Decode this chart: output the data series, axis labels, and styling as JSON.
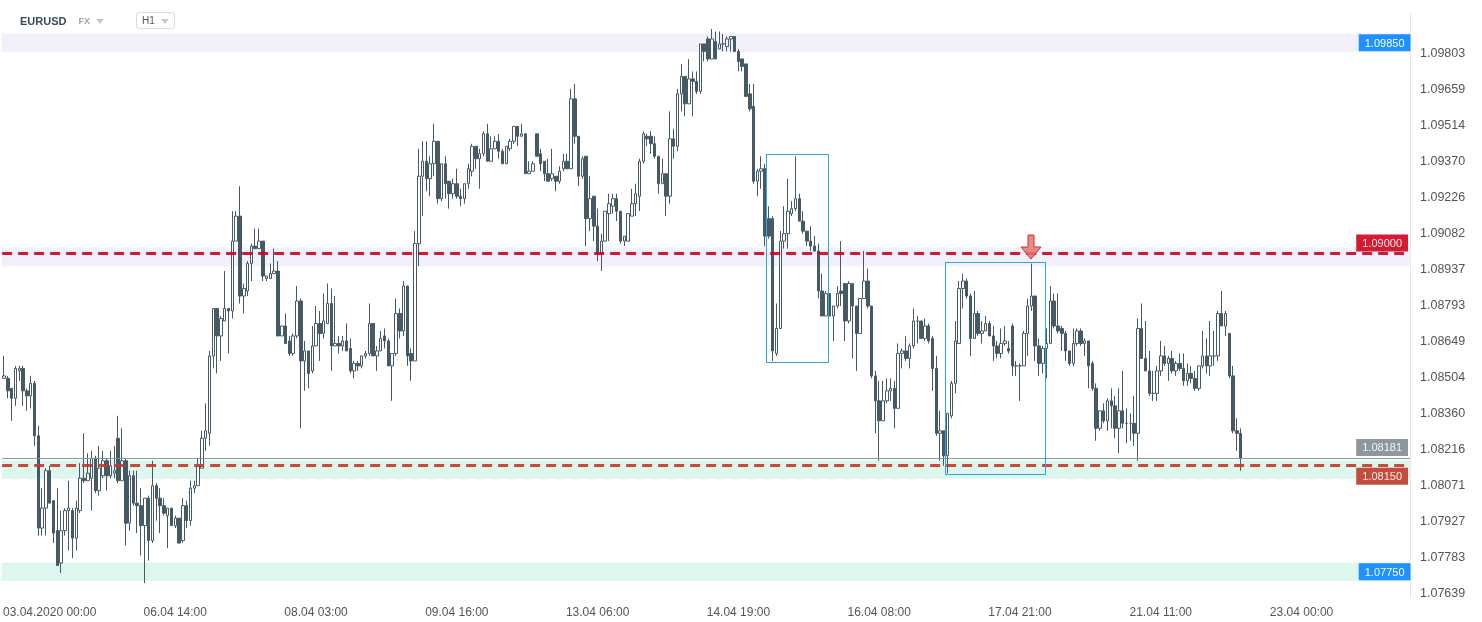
{
  "chart_data": {
    "type": "candlestick",
    "title": "EURUSD",
    "annotations": [
      "FX",
      "H1"
    ],
    "color": "#455a64",
    "categories": [
      null,
      null,
      null,
      null,
      null,
      null,
      null,
      null,
      null,
      null,
      null,
      null,
      "03.04.2020 00:00",
      null,
      null,
      null,
      null,
      null,
      null,
      null,
      null,
      null,
      null,
      null,
      null,
      null,
      null,
      null,
      null,
      null,
      null,
      null,
      null,
      null,
      null,
      null,
      null,
      null,
      null,
      null,
      null,
      null,
      null,
      null,
      null,
      "06.04 14:00",
      null,
      null,
      null,
      null,
      null,
      null,
      null,
      null,
      null,
      null,
      null,
      null,
      null,
      null,
      null,
      null,
      null,
      null,
      null,
      null,
      null,
      null,
      null,
      null,
      null,
      null,
      null,
      null,
      null,
      null,
      null,
      null,
      null,
      null,
      null,
      null,
      "08.04 03:00",
      null,
      null,
      null,
      null,
      null,
      null,
      null,
      null,
      null,
      null,
      null,
      null,
      null,
      null,
      null,
      null,
      null,
      null,
      null,
      null,
      null,
      null,
      null,
      null,
      null,
      null,
      null,
      null,
      null,
      null,
      null,
      null,
      null,
      null,
      null,
      null,
      "09.04 16:00",
      null,
      null,
      null,
      null,
      null,
      null,
      null,
      null,
      null,
      null,
      null,
      null,
      null,
      null,
      null,
      null,
      null,
      null,
      null,
      null,
      null,
      null,
      null,
      null,
      null,
      null,
      null,
      null,
      null,
      null,
      null,
      null,
      null,
      null,
      null,
      null,
      "13.04 06:00",
      null,
      null,
      null,
      null,
      null,
      null,
      null,
      null,
      null,
      null,
      null,
      null,
      null,
      null,
      null,
      null,
      null,
      null,
      null,
      null,
      null,
      null,
      null,
      null,
      null,
      null,
      null,
      null,
      null,
      null,
      null,
      null,
      null,
      null,
      null,
      null,
      "14.04 19:00",
      null,
      null,
      null,
      null,
      null,
      null,
      null,
      null,
      null,
      null,
      null,
      null,
      null,
      null,
      null,
      null,
      null,
      null,
      null,
      null,
      null,
      null,
      null,
      null,
      null,
      null,
      null,
      null,
      null,
      null,
      null,
      null,
      null,
      null,
      null,
      null,
      "16.04 08:00",
      null,
      null,
      null,
      null,
      null,
      null,
      null,
      null,
      null,
      null,
      null,
      null,
      null,
      null,
      null,
      null,
      null,
      null,
      null,
      null,
      null,
      null,
      null,
      null,
      null,
      null,
      null,
      null,
      null,
      null,
      null,
      null,
      null,
      null,
      null,
      null,
      "17.04 21:00",
      null,
      null,
      null,
      null,
      null,
      null,
      null,
      null,
      null,
      null,
      null,
      null,
      null,
      null,
      null,
      null,
      null,
      null,
      null,
      null,
      null,
      null,
      null,
      null,
      null,
      null,
      null,
      null,
      null,
      null,
      null,
      null,
      null,
      null,
      null,
      null,
      "21.04 11:00",
      null,
      null,
      null,
      null,
      null,
      null,
      null,
      null,
      null,
      null,
      null,
      null,
      null,
      null,
      null,
      null,
      null,
      null,
      null,
      null,
      null,
      null,
      null,
      null,
      null,
      null,
      null,
      null,
      null,
      null,
      null,
      null,
      null,
      null,
      null,
      null,
      "23.04 00:00",
      null,
      null,
      null,
      null,
      null,
      null,
      null,
      null,
      null,
      null,
      null,
      null,
      null,
      null,
      null,
      null,
      null,
      null,
      null,
      null,
      null,
      null,
      null,
      null,
      null,
      null,
      null,
      null
    ],
    "ohlc": [
      [
        1.085,
        1.0859,
        1.085,
        1.0851
      ],
      [
        1.085,
        1.0851,
        1.0842,
        1.0845
      ],
      [
        1.0846,
        1.0846,
        1.0833,
        1.0842
      ],
      [
        1.0842,
        1.0855,
        1.0839,
        1.0854
      ],
      [
        1.0853,
        1.0855,
        1.0849,
        1.0854
      ],
      [
        1.0854,
        1.0855,
        1.0839,
        1.0845
      ],
      [
        1.0845,
        1.0846,
        1.0837,
        1.0843
      ],
      [
        1.0843,
        1.0851,
        1.0838,
        1.0848
      ],
      [
        1.0848,
        1.0849,
        1.0823,
        1.0827
      ],
      [
        1.0827,
        1.0831,
        1.0787,
        1.079
      ],
      [
        1.079,
        1.0806,
        1.0787,
        1.0798
      ],
      [
        1.0798,
        1.0814,
        1.0787,
        1.0813
      ],
      [
        1.0813,
        1.0815,
        1.08,
        1.08
      ],
      [
        1.0801,
        1.0801,
        1.0784,
        1.0788
      ],
      [
        1.0789,
        1.0806,
        1.0775,
        1.0775
      ],
      [
        1.0776,
        1.0797,
        1.0772,
        1.0789
      ],
      [
        1.0789,
        1.0798,
        1.0787,
        1.0797
      ],
      [
        1.0797,
        1.0809,
        1.0781,
        1.0798
      ],
      [
        1.0797,
        1.0798,
        1.0778,
        1.0786
      ],
      [
        1.0786,
        1.0801,
        1.0781,
        1.0798
      ],
      [
        1.0797,
        1.0816,
        1.0796,
        1.081
      ],
      [
        1.081,
        1.0828,
        1.0808,
        1.0809
      ],
      [
        1.0809,
        1.082,
        1.0809,
        1.0812
      ],
      [
        1.081,
        1.0821,
        1.0797,
        1.0818
      ],
      [
        1.0818,
        1.0819,
        1.0804,
        1.0805
      ],
      [
        1.0805,
        1.0823,
        1.0803,
        1.0814
      ],
      [
        1.0811,
        1.0821,
        1.081,
        1.0817
      ],
      [
        1.0817,
        1.0818,
        1.0805,
        1.0811
      ],
      [
        1.0811,
        1.0821,
        1.081,
        1.0815
      ],
      [
        1.0812,
        1.0823,
        1.081,
        1.0813
      ],
      [
        1.0826,
        1.0835,
        1.0808,
        1.0809
      ],
      [
        1.0809,
        1.083,
        1.0809,
        1.0817
      ],
      [
        1.0817,
        1.0818,
        1.0783,
        1.0792
      ],
      [
        1.0792,
        1.0813,
        1.0789,
        1.0811
      ],
      [
        1.0811,
        1.0813,
        1.0799,
        1.08
      ],
      [
        1.08,
        1.0813,
        1.0788,
        1.0799
      ],
      [
        1.0799,
        1.0806,
        1.0779,
        1.0791
      ],
      [
        1.0791,
        1.0802,
        1.0768,
        1.0802
      ],
      [
        1.0802,
        1.0803,
        1.0777,
        1.0785
      ],
      [
        1.0785,
        1.0817,
        1.0784,
        1.0807
      ],
      [
        1.0807,
        1.0808,
        1.0793,
        1.0802
      ],
      [
        1.0802,
        1.0806,
        1.0788,
        1.0799
      ],
      [
        1.0799,
        1.0802,
        1.0795,
        1.0796
      ],
      [
        1.0795,
        1.0798,
        1.0782,
        1.0798
      ],
      [
        1.0798,
        1.0798,
        1.0791,
        1.0791
      ],
      [
        1.0791,
        1.0795,
        1.079,
        1.0794
      ],
      [
        1.0794,
        1.0794,
        1.0784,
        1.0784
      ],
      [
        1.0785,
        1.0802,
        1.0784,
        1.0799
      ],
      [
        1.0799,
        1.0801,
        1.079,
        1.0793
      ],
      [
        1.0793,
        1.0809,
        1.0791,
        1.0806
      ],
      [
        1.0806,
        1.0809,
        1.0804,
        1.0807
      ],
      [
        1.0807,
        1.0818,
        1.0807,
        1.0815
      ],
      [
        1.0814,
        1.0829,
        1.0814,
        1.0826
      ],
      [
        1.0826,
        1.084,
        1.0821,
        1.0829
      ],
      [
        1.0828,
        1.0861,
        1.0823,
        1.0859
      ],
      [
        1.0859,
        1.0878,
        1.0854,
        1.0878
      ],
      [
        1.0878,
        1.0878,
        1.0852,
        1.0867
      ],
      [
        1.0867,
        1.0875,
        1.0857,
        1.0874
      ],
      [
        1.0873,
        1.0893,
        1.0873,
        1.0878
      ],
      [
        1.0878,
        1.0878,
        1.086,
        1.0877
      ],
      [
        1.0877,
        1.0917,
        1.0874,
        1.0905
      ],
      [
        1.0905,
        1.0917,
        1.0905,
        1.0915
      ],
      [
        1.0915,
        1.0927,
        1.088,
        1.0883
      ],
      [
        1.0883,
        1.0888,
        1.0876,
        1.0886
      ],
      [
        1.0885,
        1.0897,
        1.0883,
        1.0896
      ],
      [
        1.0896,
        1.0904,
        1.0889,
        1.0903
      ],
      [
        1.0903,
        1.091,
        1.0902,
        1.0902
      ],
      [
        1.0902,
        1.091,
        1.0902,
        1.0905
      ],
      [
        1.0905,
        1.0905,
        1.0889,
        1.0891
      ],
      [
        1.089,
        1.0891,
        1.0889,
        1.0891
      ],
      [
        1.089,
        1.0896,
        1.089,
        1.0892
      ],
      [
        1.0892,
        1.0902,
        1.0892,
        1.0893
      ],
      [
        1.0893,
        1.0897,
        1.0867,
        1.0867
      ],
      [
        1.0867,
        1.0871,
        1.0867,
        1.0871
      ],
      [
        1.0871,
        1.0876,
        1.0864,
        1.0864
      ],
      [
        1.0865,
        1.0867,
        1.0859,
        1.086
      ],
      [
        1.086,
        1.0868,
        1.0859,
        1.0867
      ],
      [
        1.0867,
        1.0887,
        1.0866,
        1.0881
      ],
      [
        1.0881,
        1.0882,
        1.083,
        1.0857
      ],
      [
        1.0857,
        1.0865,
        1.0845,
        1.0861
      ],
      [
        1.0861,
        1.0861,
        1.0846,
        1.0852
      ],
      [
        1.0853,
        1.0871,
        1.0852,
        1.0863
      ],
      [
        1.0863,
        1.0879,
        1.0863,
        1.0872
      ],
      [
        1.0872,
        1.0877,
        1.0857,
        1.0868
      ],
      [
        1.0868,
        1.0884,
        1.0866,
        1.0873
      ],
      [
        1.0872,
        1.0888,
        1.0872,
        1.088
      ],
      [
        1.088,
        1.0886,
        1.0853,
        1.0863
      ],
      [
        1.0863,
        1.0883,
        1.0863,
        1.0864
      ],
      [
        1.0864,
        1.0867,
        1.086,
        1.0863
      ],
      [
        1.0863,
        1.0867,
        1.0861,
        1.0865
      ],
      [
        1.0865,
        1.0872,
        1.0861,
        1.0861
      ],
      [
        1.0862,
        1.0866,
        1.0852,
        1.0853
      ],
      [
        1.0853,
        1.0857,
        1.085,
        1.0856
      ],
      [
        1.0856,
        1.0857,
        1.0853,
        1.0855
      ],
      [
        1.0855,
        1.0859,
        1.0854,
        1.0859
      ],
      [
        1.0859,
        1.0861,
        1.0858,
        1.086
      ],
      [
        1.086,
        1.088,
        1.0859,
        1.0872
      ],
      [
        1.0872,
        1.0872,
        1.0859,
        1.0859
      ],
      [
        1.0859,
        1.0863,
        1.0853,
        1.0861
      ],
      [
        1.0861,
        1.0869,
        1.0861,
        1.0866
      ],
      [
        1.0867,
        1.087,
        1.0862,
        1.0865
      ],
      [
        1.0865,
        1.0866,
        1.0855,
        1.0855
      ],
      [
        1.0855,
        1.086,
        1.0841,
        1.086
      ],
      [
        1.086,
        1.0882,
        1.0859,
        1.0876
      ],
      [
        1.0876,
        1.0878,
        1.0866,
        1.0869
      ],
      [
        1.0869,
        1.0889,
        1.0867,
        1.0887
      ],
      [
        1.0887,
        1.0887,
        1.0855,
        1.0859
      ],
      [
        1.086,
        1.0862,
        1.0849,
        1.0857
      ],
      [
        1.0857,
        1.0909,
        1.0857,
        1.0904
      ],
      [
        1.0904,
        1.0942,
        1.0895,
        1.0931
      ],
      [
        1.0931,
        1.0945,
        1.0915,
        1.0937
      ],
      [
        1.0937,
        1.0945,
        1.0925,
        1.093
      ],
      [
        1.093,
        1.0939,
        1.0923,
        1.0936
      ],
      [
        1.0936,
        1.0952,
        1.0931,
        1.0945
      ],
      [
        1.0945,
        1.0945,
        1.092,
        1.0922
      ],
      [
        1.0922,
        1.0936,
        1.0921,
        1.0936
      ],
      [
        1.0936,
        1.0939,
        1.0922,
        1.0928
      ],
      [
        1.0929,
        1.0929,
        1.0918,
        1.0924
      ],
      [
        1.0924,
        1.093,
        1.0922,
        1.0928
      ],
      [
        1.0928,
        1.0934,
        1.0922,
        1.0923
      ],
      [
        1.0923,
        1.0926,
        1.0919,
        1.0922
      ],
      [
        1.0922,
        1.0928,
        1.092,
        1.0928
      ],
      [
        1.0928,
        1.0936,
        1.0926,
        1.0934
      ],
      [
        1.0933,
        1.0944,
        1.0931,
        1.0943
      ],
      [
        1.0943,
        1.0943,
        1.0934,
        1.0938
      ],
      [
        1.0938,
        1.0942,
        1.0926,
        1.094
      ],
      [
        1.094,
        1.0949,
        1.0939,
        1.0948
      ],
      [
        1.0948,
        1.0952,
        1.0937,
        1.0937
      ],
      [
        1.0937,
        1.0947,
        1.0937,
        1.0942
      ],
      [
        1.0942,
        1.0947,
        1.0942,
        1.0945
      ],
      [
        1.0945,
        1.0948,
        1.0938,
        1.0941
      ],
      [
        1.0941,
        1.0942,
        1.0936,
        1.0936
      ],
      [
        1.0936,
        1.0943,
        1.0936,
        1.0943
      ],
      [
        1.0942,
        1.0946,
        1.0941,
        1.0945
      ],
      [
        1.0945,
        1.0951,
        1.0944,
        1.0951
      ],
      [
        1.0951,
        1.0951,
        1.0943,
        1.0947
      ],
      [
        1.0947,
        1.0952,
        1.0947,
        1.0948
      ],
      [
        1.0948,
        1.0948,
        1.0932,
        1.0932
      ],
      [
        1.0932,
        1.0937,
        1.0932,
        1.0933
      ],
      [
        1.0933,
        1.0937,
        1.0933,
        1.0936
      ],
      [
        1.0948,
        1.0948,
        1.0939,
        1.0939
      ],
      [
        1.094,
        1.0942,
        1.0933,
        1.0936
      ],
      [
        1.0937,
        1.0937,
        1.0929,
        1.0932
      ],
      [
        1.0932,
        1.0938,
        1.0929,
        1.0929
      ],
      [
        1.093,
        1.0942,
        1.0929,
        1.0932
      ],
      [
        1.0931,
        1.0931,
        1.0925,
        1.0929
      ],
      [
        1.0929,
        1.0935,
        1.0928,
        1.0933
      ],
      [
        1.0934,
        1.094,
        1.0933,
        1.0937
      ],
      [
        1.0937,
        1.094,
        1.0934,
        1.0934
      ],
      [
        1.0934,
        1.0966,
        1.0934,
        1.0962
      ],
      [
        1.0962,
        1.0968,
        1.0944,
        1.0947
      ],
      [
        1.0947,
        1.0947,
        1.0927,
        1.0931
      ],
      [
        1.0931,
        1.0939,
        1.093,
        1.0938
      ],
      [
        1.0939,
        1.0939,
        1.0903,
        1.0914
      ],
      [
        1.0914,
        1.0931,
        1.0909,
        1.0922
      ],
      [
        1.0923,
        1.0923,
        1.0905,
        1.0911
      ],
      [
        1.0911,
        1.0918,
        1.0897,
        1.09
      ],
      [
        1.09,
        1.0908,
        1.0893,
        1.0905
      ],
      [
        1.0905,
        1.0917,
        1.0905,
        1.0917
      ],
      [
        1.0916,
        1.0924,
        1.0905,
        1.092
      ],
      [
        1.0919,
        1.0924,
        1.0916,
        1.0922
      ],
      [
        1.0922,
        1.0924,
        1.0913,
        1.0917
      ],
      [
        1.0917,
        1.0917,
        1.0904,
        1.0905
      ],
      [
        1.0905,
        1.0907,
        1.0903,
        1.0907
      ],
      [
        1.0905,
        1.0916,
        1.0905,
        1.0916
      ],
      [
        1.0915,
        1.0926,
        1.0915,
        1.092
      ],
      [
        1.092,
        1.0928,
        1.0915,
        1.0924
      ],
      [
        1.0923,
        1.0938,
        1.0917,
        1.0937
      ],
      [
        1.0937,
        1.0949,
        1.0936,
        1.0948
      ],
      [
        1.0947,
        1.0948,
        1.0943,
        1.0946
      ],
      [
        1.0947,
        1.0949,
        1.094,
        1.0944
      ],
      [
        1.0944,
        1.0947,
        1.0938,
        1.0939
      ],
      [
        1.0939,
        1.0939,
        1.0924,
        1.0928
      ],
      [
        1.0928,
        1.0938,
        1.0928,
        1.0932
      ],
      [
        1.0932,
        1.0932,
        1.0915,
        1.0923
      ],
      [
        1.0923,
        1.0957,
        1.092,
        1.0946
      ],
      [
        1.0946,
        1.095,
        1.0938,
        1.0943
      ],
      [
        1.0943,
        1.0966,
        1.0941,
        1.0964
      ],
      [
        1.0964,
        1.0976,
        1.0957,
        1.0971
      ],
      [
        1.0971,
        1.0971,
        1.0955,
        1.096
      ],
      [
        1.096,
        1.0978,
        1.096,
        1.097
      ],
      [
        1.097,
        1.0973,
        1.0955,
        1.0969
      ],
      [
        1.0969,
        1.0973,
        1.0964,
        1.0965
      ],
      [
        1.0965,
        1.0984,
        1.0964,
        1.0984
      ],
      [
        1.0984,
        1.0984,
        1.0977,
        1.0981
      ],
      [
        1.0986,
        1.0987,
        1.0977,
        1.0978
      ],
      [
        1.0978,
        1.099,
        1.0978,
        1.0986
      ],
      [
        1.0985,
        1.0989,
        1.0978,
        1.0978
      ],
      [
        1.0982,
        1.0989,
        1.0982,
        1.0984
      ],
      [
        1.0984,
        1.0988,
        1.0981,
        1.0984
      ],
      [
        1.0983,
        1.0987,
        1.0981,
        1.0986
      ],
      [
        1.0986,
        1.0987,
        1.0981,
        1.0987
      ],
      [
        1.0987,
        1.0987,
        1.0981,
        1.0981
      ],
      [
        1.0981,
        1.0982,
        1.0973,
        1.0977
      ],
      [
        1.0978,
        1.0978,
        1.0973,
        1.0975
      ],
      [
        1.0976,
        1.0976,
        1.0963,
        1.0963
      ],
      [
        1.0964,
        1.0968,
        1.0957,
        1.0958
      ],
      [
        1.0959,
        1.0968,
        1.0928,
        1.0929
      ],
      [
        1.0929,
        1.0934,
        1.0923,
        1.0933
      ],
      [
        1.0933,
        1.0939,
        1.0926,
        1.0934
      ],
      [
        1.0934,
        1.0936,
        1.0903,
        1.0907
      ],
      [
        1.0914,
        1.0919,
        1.0906,
        1.0907
      ],
      [
        1.0914,
        1.0915,
        1.0857,
        1.0861
      ],
      [
        1.086,
        1.088,
        1.0859,
        1.087
      ],
      [
        1.087,
        1.0909,
        1.087,
        1.0905
      ],
      [
        1.0905,
        1.0919,
        1.0902,
        1.0908
      ],
      [
        1.0908,
        1.093,
        1.0902,
        1.0917
      ],
      [
        1.0916,
        1.0921,
        1.0915,
        1.0918
      ],
      [
        1.0918,
        1.0939,
        1.0917,
        1.0922
      ],
      [
        1.0922,
        1.0924,
        1.0913,
        1.0913
      ],
      [
        1.0913,
        1.0917,
        1.0908,
        1.0909
      ],
      [
        1.0909,
        1.0909,
        1.0903,
        1.0905
      ],
      [
        1.0905,
        1.0911,
        1.0901,
        1.0903
      ],
      [
        1.0903,
        1.0907,
        1.0901,
        1.0901
      ],
      [
        1.0901,
        1.0904,
        1.0882,
        1.0885
      ],
      [
        1.0885,
        1.0892,
        1.0875,
        1.0875
      ],
      [
        1.0875,
        1.0885,
        1.0875,
        1.0884
      ],
      [
        1.0884,
        1.0884,
        1.0875,
        1.0875
      ],
      [
        1.0875,
        1.0879,
        1.0865,
        1.0879
      ],
      [
        1.0879,
        1.0887,
        1.0878,
        1.0884
      ],
      [
        1.0885,
        1.0905,
        1.0879,
        1.0884
      ],
      [
        1.0888,
        1.0888,
        1.0865,
        1.0873
      ],
      [
        1.0873,
        1.0889,
        1.0872,
        1.0888
      ],
      [
        1.0888,
        1.0888,
        1.0858,
        1.0879
      ],
      [
        1.0879,
        1.0879,
        1.0853,
        1.0868
      ],
      [
        1.0868,
        1.0882,
        1.0868,
        1.0882
      ],
      [
        1.0882,
        1.0901,
        1.0882,
        1.0889
      ],
      [
        1.0889,
        1.0894,
        1.0878,
        1.0879
      ],
      [
        1.0879,
        1.0879,
        1.085,
        1.0851
      ],
      [
        1.0851,
        1.0853,
        1.0828,
        1.0841
      ],
      [
        1.0841,
        1.0849,
        1.0817,
        1.0833
      ],
      [
        1.0833,
        1.0849,
        1.0833,
        1.0841
      ],
      [
        1.0841,
        1.085,
        1.084,
        1.0845
      ],
      [
        1.0845,
        1.085,
        1.0841,
        1.0846
      ],
      [
        1.0846,
        1.0849,
        1.083,
        1.0838
      ],
      [
        1.0838,
        1.0864,
        1.0838,
        1.086
      ],
      [
        1.086,
        1.0862,
        1.0854,
        1.0861
      ],
      [
        1.0861,
        1.0867,
        1.0857,
        1.0858
      ],
      [
        1.0858,
        1.0864,
        1.0854,
        1.0863
      ],
      [
        1.0863,
        1.0878,
        1.0862,
        1.0873
      ],
      [
        1.0873,
        1.0875,
        1.0864,
        1.0873
      ],
      [
        1.0873,
        1.0873,
        1.0866,
        1.0866
      ],
      [
        1.0866,
        1.0874,
        1.0865,
        1.0871
      ],
      [
        1.0871,
        1.0872,
        1.0864,
        1.0865
      ],
      [
        1.0866,
        1.0867,
        1.0845,
        1.0854
      ],
      [
        1.0854,
        1.0859,
        1.0827,
        1.0828
      ],
      [
        1.0828,
        1.0837,
        1.0817,
        1.0829
      ],
      [
        1.0829,
        1.0829,
        1.0815,
        1.0819
      ],
      [
        1.0819,
        1.0836,
        1.0812,
        1.0836
      ],
      [
        1.0835,
        1.0849,
        1.0834,
        1.0848
      ],
      [
        1.0848,
        1.0873,
        1.0844,
        1.0865
      ],
      [
        1.0864,
        1.0889,
        1.0864,
        1.0886
      ],
      [
        1.0886,
        1.0892,
        1.0878,
        1.0889
      ],
      [
        1.0889,
        1.089,
        1.0882,
        1.0883
      ],
      [
        1.0883,
        1.0884,
        1.0859,
        1.0866
      ],
      [
        1.0866,
        1.0885,
        1.0866,
        1.0876
      ],
      [
        1.0876,
        1.0877,
        1.0867,
        1.0868
      ],
      [
        1.0868,
        1.0873,
        1.0864,
        1.0869
      ],
      [
        1.0869,
        1.0875,
        1.0869,
        1.0872
      ],
      [
        1.0872,
        1.0873,
        1.0867,
        1.0867
      ],
      [
        1.0867,
        1.0871,
        1.0857,
        1.0863
      ],
      [
        1.0863,
        1.0865,
        1.0858,
        1.086
      ],
      [
        1.086,
        1.087,
        1.0858,
        1.0864
      ],
      [
        1.0864,
        1.0871,
        1.0863,
        1.0865
      ],
      [
        1.0862,
        1.0865,
        1.086,
        1.0861
      ],
      [
        1.0871,
        1.0872,
        1.0851,
        1.0855
      ],
      [
        1.0855,
        1.0857,
        1.0851,
        1.0855
      ],
      [
        1.0855,
        1.0856,
        1.0841,
        1.0855
      ],
      [
        1.0855,
        1.0869,
        1.0855,
        1.0868
      ],
      [
        1.0868,
        1.0882,
        1.0859,
        1.0879
      ],
      [
        1.0879,
        1.0896,
        1.0877,
        1.0883
      ],
      [
        1.0883,
        1.0883,
        1.0857,
        1.0863
      ],
      [
        1.0863,
        1.0866,
        1.0851,
        1.0856
      ],
      [
        1.0856,
        1.0863,
        1.0852,
        1.0862
      ],
      [
        1.0862,
        1.087,
        1.085,
        1.0864
      ],
      [
        1.0864,
        1.0887,
        1.0864,
        1.0881
      ],
      [
        1.0881,
        1.0884,
        1.087,
        1.0871
      ],
      [
        1.0871,
        1.0884,
        1.0868,
        1.0869
      ],
      [
        1.087,
        1.0871,
        1.0861,
        1.0868
      ],
      [
        1.0868,
        1.0869,
        1.0857,
        1.0861
      ],
      [
        1.0861,
        1.0861,
        1.0855,
        1.0856
      ],
      [
        1.0856,
        1.087,
        1.0855,
        1.0864
      ],
      [
        1.0864,
        1.087,
        1.0863,
        1.0869
      ],
      [
        1.0869,
        1.087,
        1.0863,
        1.0864
      ],
      [
        1.0864,
        1.0866,
        1.0859,
        1.0865
      ],
      [
        1.0865,
        1.0865,
        1.0846,
        1.0855
      ],
      [
        1.0856,
        1.0857,
        1.0845,
        1.0846
      ],
      [
        1.0846,
        1.0848,
        1.0825,
        1.083
      ],
      [
        1.083,
        1.0837,
        1.0829,
        1.0837
      ],
      [
        1.0837,
        1.084,
        1.0832,
        1.0833
      ],
      [
        1.0833,
        1.0842,
        1.0829,
        1.0841
      ],
      [
        1.0841,
        1.0846,
        1.083,
        1.0839
      ],
      [
        1.0839,
        1.0843,
        1.0826,
        1.083
      ],
      [
        1.083,
        1.0846,
        1.082,
        1.0837
      ],
      [
        1.0837,
        1.0853,
        1.083,
        1.0832
      ],
      [
        1.0832,
        1.0838,
        1.0824,
        1.0832
      ],
      [
        1.0832,
        1.0836,
        1.0825,
        1.0832
      ],
      [
        1.0832,
        1.0843,
        1.0823,
        1.0828
      ],
      [
        1.0828,
        1.0874,
        1.0817,
        1.087
      ],
      [
        1.087,
        1.088,
        1.0858,
        1.0858
      ],
      [
        1.0858,
        1.0873,
        1.0853,
        1.0853
      ],
      [
        1.0853,
        1.0861,
        1.0843,
        1.0844
      ],
      [
        1.0844,
        1.0853,
        1.0841,
        1.0844
      ],
      [
        1.0844,
        1.0855,
        1.0841,
        1.0853
      ],
      [
        1.0853,
        1.0865,
        1.0851,
        1.0859
      ],
      [
        1.0859,
        1.0863,
        1.0855,
        1.0856
      ],
      [
        1.0856,
        1.0859,
        1.0849,
        1.0858
      ],
      [
        1.0858,
        1.0861,
        1.0852,
        1.0853
      ],
      [
        1.0853,
        1.0857,
        1.0851,
        1.0856
      ],
      [
        1.0856,
        1.086,
        1.0853,
        1.0854
      ],
      [
        1.0854,
        1.086,
        1.0847,
        1.0849
      ],
      [
        1.0849,
        1.0856,
        1.0847,
        1.0852
      ],
      [
        1.0852,
        1.0855,
        1.0848,
        1.085
      ],
      [
        1.085,
        1.0853,
        1.0845,
        1.0846
      ],
      [
        1.0846,
        1.0855,
        1.0845,
        1.0855
      ],
      [
        1.0855,
        1.0869,
        1.0854,
        1.0859
      ],
      [
        1.0859,
        1.0866,
        1.0852,
        1.0855
      ],
      [
        1.0855,
        1.0873,
        1.0851,
        1.0859
      ],
      [
        1.0859,
        1.0869,
        1.0855,
        1.0859
      ],
      [
        1.0859,
        1.0877,
        1.0857,
        1.0876
      ],
      [
        1.0876,
        1.0885,
        1.0871,
        1.0871
      ],
      [
        1.0871,
        1.0877,
        1.0867,
        1.0876
      ],
      [
        1.0868,
        1.0868,
        1.085,
        1.0851
      ],
      [
        1.0851,
        1.0855,
        1.0828,
        1.0829
      ],
      [
        1.0829,
        1.0834,
        1.0821,
        1.0828
      ],
      [
        1.0828,
        1.083,
        1.0813,
        1.0818
      ],
      null,
      null,
      null,
      null,
      null,
      null,
      null,
      null,
      null,
      null,
      null,
      null,
      null,
      null,
      null,
      null,
      null,
      null,
      null,
      null,
      null,
      null,
      null,
      null,
      null,
      null,
      null,
      null,
      null,
      null,
      null,
      null,
      null,
      null,
      null,
      null,
      null,
      null,
      null,
      null,
      null,
      null,
      null,
      null
    ],
    "ylim": [
      1.0762,
      1.0996
    ],
    "yticks": [
      1.07639,
      1.07783,
      1.07927,
      1.08071,
      1.08216,
      {
        "value": 1.0836,
        "label": "1.08360"
      },
      1.08504,
      1.08649,
      1.08793,
      1.08937,
      1.09082,
      1.09226,
      {
        "value": 1.0937,
        "label": "1.09370"
      },
      1.09514,
      1.09659,
      1.09803
    ],
    "bands": [
      {
        "axis": "y",
        "from": 1.0981,
        "to": 1.0988,
        "label": "1.09850",
        "color": "#eeebf8"
      },
      {
        "axis": "y",
        "from": 1.0895,
        "to": 1.0902,
        "color": "#eeebf8"
      },
      {
        "axis": "y",
        "from": 1.081,
        "to": 1.0817,
        "color": "#d2f4e8"
      },
      {
        "axis": "y",
        "from": 1.0769,
        "to": 1.0776,
        "label": "1.07750",
        "color": "#d2f4e8"
      }
    ],
    "ref_lines": [
      {
        "axis": "y",
        "value": 1.09,
        "label": "1.09000",
        "color": "#d0021b",
        "line_style": "dashed"
      },
      {
        "axis": "y",
        "value": 1.0815,
        "label": "1.08150",
        "color": "#c0392b",
        "line_style": "dashed"
      },
      {
        "axis": "y",
        "value": 1.08181,
        "label": "1.08181",
        "color": "#7f8c93",
        "line_style": "solid"
      }
    ]
  }
}
